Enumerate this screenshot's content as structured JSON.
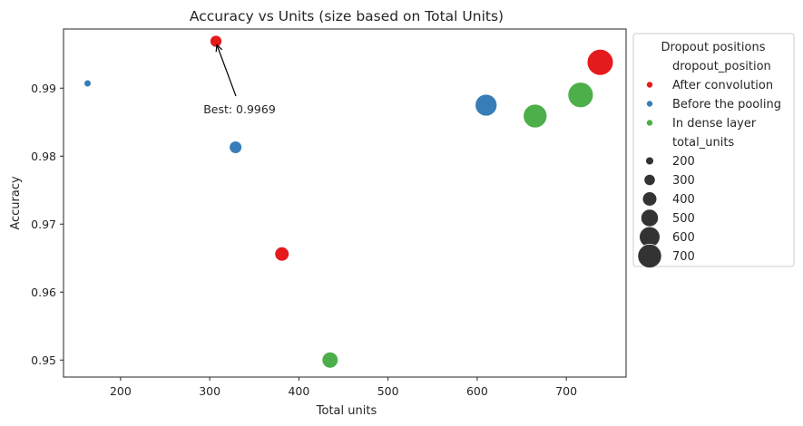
{
  "chart_data": {
    "type": "scatter",
    "title": "Accuracy vs Units (size based on Total Units)",
    "xlabel": "Total units",
    "ylabel": "Accuracy",
    "xlim": [
      136,
      767
    ],
    "ylim": [
      0.9475,
      0.9987
    ],
    "xticks": [
      200,
      300,
      400,
      500,
      600,
      700
    ],
    "yticks": [
      0.95,
      0.96,
      0.97,
      0.98,
      0.99
    ],
    "ytick_labels": [
      "0.95",
      "0.96",
      "0.97",
      "0.98",
      "0.99"
    ],
    "grid": false,
    "legend_placement": "outside-right-top",
    "series": [
      {
        "name": "After convolution",
        "color": "#e41a1c",
        "points": [
          {
            "x": 307,
            "y": 0.9969
          },
          {
            "x": 381,
            "y": 0.9656
          },
          {
            "x": 738,
            "y": 0.9938
          }
        ]
      },
      {
        "name": "Before the pooling",
        "color": "#377eb8",
        "points": [
          {
            "x": 163,
            "y": 0.9907
          },
          {
            "x": 329,
            "y": 0.9813
          },
          {
            "x": 610,
            "y": 0.9875
          }
        ]
      },
      {
        "name": "In dense layer",
        "color": "#4daf4a",
        "points": [
          {
            "x": 435,
            "y": 0.95
          },
          {
            "x": 665,
            "y": 0.9859
          },
          {
            "x": 716,
            "y": 0.989
          }
        ]
      }
    ],
    "annotation": {
      "text": "Best: 0.9969",
      "x": 307,
      "y": 0.9969
    },
    "legend": {
      "title": "Dropout positions",
      "hue_header": "dropout_position",
      "size_header": "total_units",
      "hue_entries": [
        {
          "label": "After convolution",
          "color": "#e41a1c"
        },
        {
          "label": "Before the pooling",
          "color": "#377eb8"
        },
        {
          "label": "In dense layer",
          "color": "#4daf4a"
        }
      ],
      "size_entries": [
        {
          "label": "200",
          "value": 200
        },
        {
          "label": "300",
          "value": 300
        },
        {
          "label": "400",
          "value": 400
        },
        {
          "label": "500",
          "value": 500
        },
        {
          "label": "600",
          "value": 600
        },
        {
          "label": "700",
          "value": 700
        }
      ]
    }
  }
}
